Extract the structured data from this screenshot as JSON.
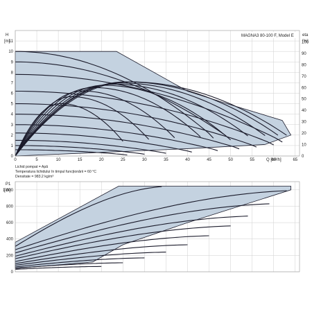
{
  "top": {
    "title": "MAGNA3 80-100 F, Model E",
    "y_unit_label": "H",
    "y_unit": "[m]",
    "eta_unit_label": "eta",
    "eta_unit": "[%]",
    "x_unit": "Q [m³/h]",
    "info_lines": [
      "Lichid pompat = Apă",
      "Temperatura lichidului în timpul funcționării = 60 °C",
      "Densitate = 983.2 kg/m³"
    ]
  },
  "bottom": {
    "y_unit_label": "P1",
    "y_unit": "[W]"
  },
  "chart_data": [
    {
      "type": "line",
      "panel": "head",
      "xlim": [
        0,
        66
      ],
      "ylim": [
        0,
        12
      ],
      "x_ticks": [
        0,
        5,
        10,
        15,
        20,
        25,
        30,
        35,
        40,
        45,
        50,
        55,
        60,
        65
      ],
      "y_ticks": [
        0,
        1,
        2,
        3,
        4,
        5,
        6,
        7,
        8,
        9,
        10,
        11
      ],
      "y2_ticks": [
        0,
        10,
        20,
        30,
        40,
        50,
        60,
        70,
        80,
        90,
        100
      ],
      "envelope": [
        [
          0,
          10
        ],
        [
          23.5,
          10
        ],
        [
          40,
          6.2
        ],
        [
          50,
          4.9
        ],
        [
          62,
          3.4
        ],
        [
          64,
          2
        ],
        [
          58,
          1.1
        ],
        [
          40,
          0.7
        ],
        [
          26,
          0.45
        ],
        [
          0,
          0
        ]
      ],
      "head_curves": [
        {
          "shutoff": 10,
          "qmax": 46
        },
        {
          "shutoff": 9,
          "qmax": 50
        },
        {
          "shutoff": 7.8,
          "qmax": 62
        },
        {
          "shutoff": 6.2,
          "qmax": 60
        },
        {
          "shutoff": 5,
          "qmax": 56
        },
        {
          "shutoff": 4,
          "qmax": 52
        },
        {
          "shutoff": 3,
          "qmax": 47
        },
        {
          "shutoff": 2.2,
          "qmax": 41
        },
        {
          "shutoff": 1.5,
          "qmax": 35
        },
        {
          "shutoff": 1,
          "qmax": 30
        },
        {
          "shutoff": 0.6,
          "qmax": 26
        }
      ],
      "eta_curves": [
        {
          "peak": 65,
          "qmax": 63
        },
        {
          "peak": 65,
          "qmax": 61
        },
        {
          "peak": 64,
          "qmax": 58
        },
        {
          "peak": 63,
          "qmax": 54
        },
        {
          "peak": 62,
          "qmax": 49
        },
        {
          "peak": 60,
          "qmax": 43
        },
        {
          "peak": 57,
          "qmax": 37
        },
        {
          "peak": 52,
          "qmax": 31
        },
        {
          "peak": 46,
          "qmax": 25
        }
      ]
    },
    {
      "type": "line",
      "panel": "power",
      "xlim": [
        0,
        66
      ],
      "ylim": [
        0,
        1100
      ],
      "y_ticks": [
        0,
        200,
        400,
        600,
        800,
        1000
      ],
      "y_tick_labels": [
        "0",
        "200",
        "400",
        "600",
        "800",
        "1.000"
      ],
      "envelope": [
        [
          0,
          360
        ],
        [
          24,
          1045
        ],
        [
          64,
          1045
        ],
        [
          64,
          1000
        ],
        [
          40,
          600
        ],
        [
          25,
          330
        ],
        [
          18,
          120
        ],
        [
          0,
          40
        ]
      ],
      "power_curves": [
        {
          "p0": 310,
          "pmax": 1040,
          "qmax": 34
        },
        {
          "p0": 270,
          "pmax": 990,
          "qmax": 63
        },
        {
          "p0": 230,
          "pmax": 830,
          "qmax": 59
        },
        {
          "p0": 190,
          "pmax": 680,
          "qmax": 54
        },
        {
          "p0": 160,
          "pmax": 560,
          "qmax": 50
        },
        {
          "p0": 125,
          "pmax": 440,
          "qmax": 45
        },
        {
          "p0": 100,
          "pmax": 330,
          "qmax": 40
        },
        {
          "p0": 80,
          "pmax": 240,
          "qmax": 35
        },
        {
          "p0": 60,
          "pmax": 170,
          "qmax": 30
        },
        {
          "p0": 45,
          "pmax": 110,
          "qmax": 25
        },
        {
          "p0": 30,
          "pmax": 65,
          "qmax": 20
        }
      ]
    }
  ]
}
